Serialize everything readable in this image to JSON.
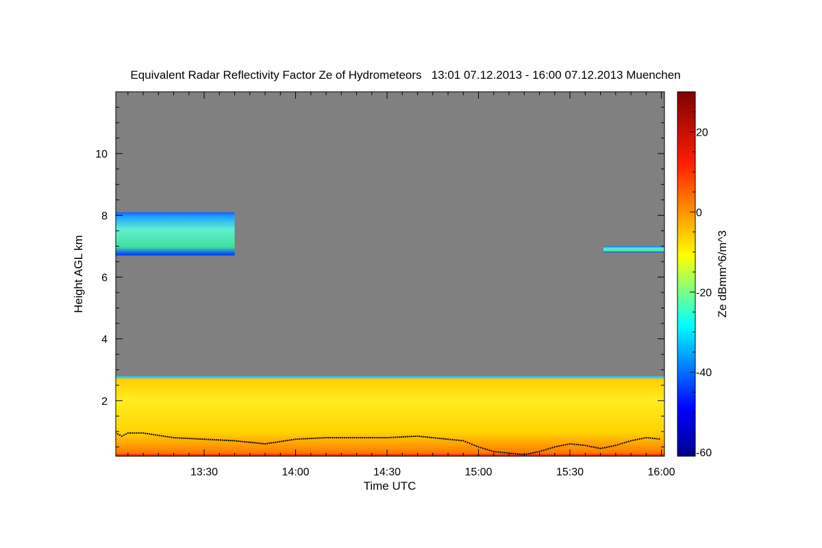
{
  "chart_data": {
    "type": "heatmap",
    "title": "Equivalent Radar Reflectivity Factor Ze of Hydrometeors   13:01 07.12.2013 - 16:00 07.12.2013 Muenchen",
    "xlabel": "Time UTC",
    "ylabel": "Height AGL km",
    "x_ticks": [
      "13:30",
      "14:00",
      "14:30",
      "15:00",
      "15:30",
      "16:00"
    ],
    "x_tick_values_min": [
      30,
      60,
      90,
      120,
      150,
      180
    ],
    "x_range_min": [
      1,
      181
    ],
    "y_ticks": [
      "2",
      "4",
      "6",
      "8",
      "10"
    ],
    "y_tick_values": [
      2,
      4,
      6,
      8,
      10
    ],
    "ylim": [
      0.2,
      12
    ],
    "colorbar": {
      "label": "Ze dBmm^6/m^3",
      "range": [
        -61,
        30
      ],
      "ticks": [
        "20",
        "0",
        "-20",
        "-40",
        "-60"
      ],
      "tick_values": [
        20,
        0,
        -20,
        -40,
        -60
      ]
    },
    "colors": {
      "no_signal": "#808080",
      "markers": "#000000"
    },
    "regions": [
      {
        "kind": "boundary_layer",
        "t_range_min": [
          1,
          181
        ],
        "height_km": [
          0.2,
          2.8
        ],
        "ze_dbz_typical": [
          -20,
          10
        ]
      },
      {
        "kind": "high_cloud",
        "t_range_min": [
          1,
          40
        ],
        "height_km": [
          6.7,
          8.1
        ],
        "ze_dbz_typical": [
          -35,
          -20
        ]
      },
      {
        "kind": "high_cloud",
        "t_range_min": [
          161,
          181
        ],
        "height_km": [
          6.8,
          7.0
        ],
        "ze_dbz_typical": [
          -30,
          -25
        ]
      }
    ],
    "cloud_base_series": {
      "t_min": [
        1,
        3,
        5,
        10,
        20,
        30,
        40,
        50,
        60,
        70,
        80,
        90,
        100,
        110,
        115,
        120,
        125,
        130,
        135,
        140,
        145,
        150,
        155,
        160,
        165,
        170,
        175,
        180
      ],
      "height_km": [
        0.95,
        0.85,
        0.95,
        0.95,
        0.8,
        0.75,
        0.7,
        0.6,
        0.75,
        0.8,
        0.8,
        0.8,
        0.85,
        0.75,
        0.7,
        0.5,
        0.35,
        0.3,
        0.25,
        0.35,
        0.5,
        0.6,
        0.55,
        0.45,
        0.55,
        0.7,
        0.8,
        0.75
      ]
    }
  }
}
